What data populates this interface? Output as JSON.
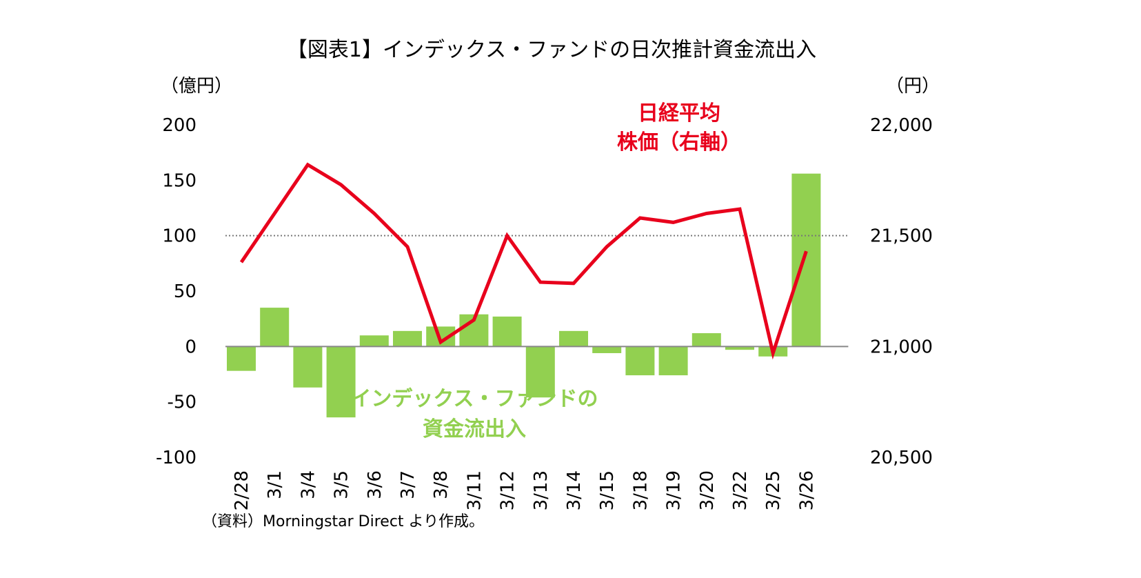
{
  "chart_data": {
    "type": "bar",
    "title": "【図表1】インデックス・ファンドの日次推計資金流出入",
    "left_axis": {
      "unit_label": "（億円）",
      "ylim": [
        -100,
        200
      ],
      "ticks": [
        "200",
        "150",
        "100",
        "50",
        "0",
        "-50",
        "-100"
      ]
    },
    "right_axis": {
      "unit_label": "（円）",
      "ylim": [
        20500,
        22000
      ],
      "ticks": [
        "22,000",
        "21,500",
        "21,000",
        "20,500"
      ]
    },
    "categories": [
      "2/28",
      "3/1",
      "3/4",
      "3/5",
      "3/6",
      "3/7",
      "3/8",
      "3/11",
      "3/12",
      "3/13",
      "3/14",
      "3/15",
      "3/18",
      "3/19",
      "3/20",
      "3/22",
      "3/25",
      "3/26"
    ],
    "series": [
      {
        "name": "インデックス・ファンドの資金流出入",
        "type": "bar",
        "axis": "left",
        "color": "#92d050",
        "values": [
          -22,
          35,
          -37,
          -64,
          10,
          14,
          18,
          29,
          27,
          -46,
          14,
          -6,
          -26,
          -26,
          12,
          -3,
          -9,
          156
        ]
      },
      {
        "name": "日経平均株価（右軸）",
        "type": "line",
        "axis": "right",
        "color": "#e8001c",
        "values": [
          21380,
          21600,
          21820,
          21730,
          21600,
          21450,
          21020,
          21120,
          21500,
          21290,
          21285,
          21450,
          21580,
          21560,
          21600,
          21620,
          20970,
          21430
        ]
      }
    ],
    "reference_line": {
      "axis": "left",
      "value": 100,
      "style": "dotted"
    },
    "annotations": {
      "line_label_1": "日経平均",
      "line_label_2": "株価（右軸）",
      "bar_label_1": "インデックス・ファンドの",
      "bar_label_2": "資金流出入"
    },
    "source_note": "（資料）Morningstar Direct より作成。"
  }
}
